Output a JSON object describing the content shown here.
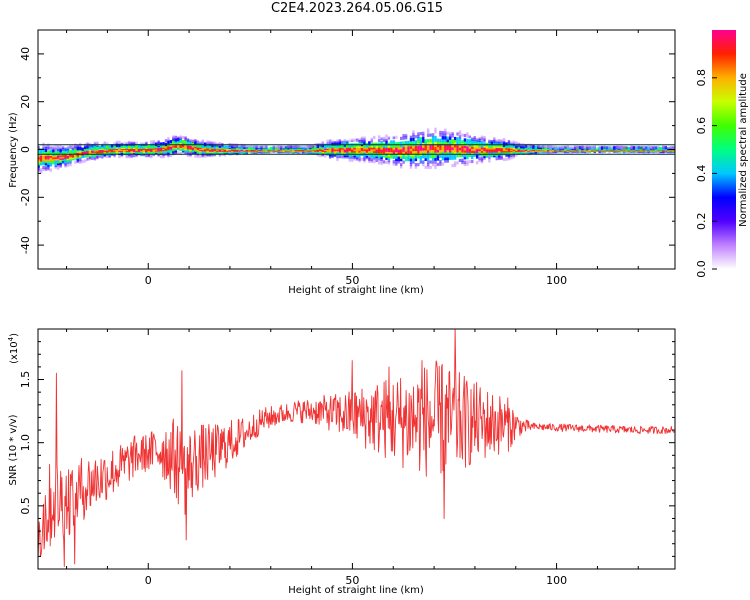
{
  "title": "C2E4.2023.264.05.06.G15",
  "chart_data": [
    {
      "type": "heatmap",
      "xlabel": "Height of straight line (km)",
      "ylabel": "Frequency (Hz)",
      "xlim": [
        -27,
        129
      ],
      "ylim": [
        -50,
        50
      ],
      "xticks": [
        0,
        50,
        100
      ],
      "yticks": [
        40,
        20,
        0,
        -20,
        -40
      ],
      "ytick_labels": [
        "40",
        "20",
        "0",
        "-20",
        "-40"
      ],
      "colorbar": {
        "label": "Normalized spectral amplitude",
        "range": [
          0,
          1
        ],
        "ticks": [
          0.0,
          0.2,
          0.4,
          0.6,
          0.8
        ],
        "tick_labels": [
          "0.0",
          "0.2",
          "0.4",
          "0.6",
          "0.8"
        ],
        "colors": [
          "#ffffff",
          "#c080ff",
          "#5000ff",
          "#0000ff",
          "#00c8ff",
          "#00ff80",
          "#40ff00",
          "#c8ff00",
          "#ffb000",
          "#ff2000",
          "#ff0090"
        ]
      },
      "reference_band_hz": [
        -2,
        2
      ],
      "centerline_points": [
        [
          -27,
          -3.5
        ],
        [
          -24,
          -3.5
        ],
        [
          -21,
          -3
        ],
        [
          -18,
          -2
        ],
        [
          -15,
          -1
        ],
        [
          -12,
          -0.5
        ],
        [
          -8,
          0
        ],
        [
          -4,
          0
        ],
        [
          0,
          0
        ],
        [
          4,
          0.5
        ],
        [
          7,
          2
        ],
        [
          9,
          1.5
        ],
        [
          12,
          0.5
        ],
        [
          16,
          0
        ],
        [
          20,
          0
        ],
        [
          30,
          0
        ],
        [
          40,
          0
        ],
        [
          50,
          0
        ],
        [
          55,
          0
        ],
        [
          60,
          -0.5
        ],
        [
          65,
          0
        ],
        [
          70,
          0.5
        ],
        [
          75,
          0.5
        ],
        [
          80,
          0
        ],
        [
          85,
          0
        ],
        [
          88,
          0
        ],
        [
          90,
          0
        ],
        [
          100,
          0
        ],
        [
          110,
          0
        ],
        [
          120,
          0
        ],
        [
          129,
          0
        ]
      ],
      "spread_points": [
        [
          -27,
          6
        ],
        [
          -20,
          4
        ],
        [
          -10,
          3
        ],
        [
          0,
          3
        ],
        [
          8,
          4
        ],
        [
          20,
          2
        ],
        [
          30,
          1
        ],
        [
          40,
          1.5
        ],
        [
          45,
          4
        ],
        [
          55,
          5
        ],
        [
          62,
          7
        ],
        [
          70,
          8
        ],
        [
          76,
          7
        ],
        [
          82,
          5
        ],
        [
          88,
          4
        ],
        [
          91,
          2
        ],
        [
          100,
          1
        ],
        [
          129,
          1
        ]
      ]
    },
    {
      "type": "line",
      "xlabel": "Height of straight line (km)",
      "ylabel": "SNR (10 * v/v)",
      "y_multiplier": "(x10",
      "y_multiplier_exp": "4",
      "y_multiplier_close": ")",
      "xlim": [
        -27,
        129
      ],
      "ylim": [
        0,
        1.9
      ],
      "xticks": [
        0,
        50,
        100
      ],
      "yticks": [
        0.5,
        1.0,
        1.5
      ],
      "ytick_labels": [
        "0.5",
        "1.0",
        "1.5"
      ],
      "color": "#f03232",
      "mean_points": [
        [
          -27,
          0.3
        ],
        [
          -25,
          0.45
        ],
        [
          -23,
          0.55
        ],
        [
          -20,
          0.55
        ],
        [
          -17,
          0.62
        ],
        [
          -14,
          0.68
        ],
        [
          -10,
          0.75
        ],
        [
          -6,
          0.82
        ],
        [
          -3,
          0.9
        ],
        [
          0,
          0.92
        ],
        [
          3,
          0.95
        ],
        [
          6,
          0.9
        ],
        [
          9,
          0.75
        ],
        [
          12,
          0.88
        ],
        [
          16,
          0.92
        ],
        [
          20,
          1.0
        ],
        [
          24,
          1.08
        ],
        [
          28,
          1.18
        ],
        [
          32,
          1.22
        ],
        [
          36,
          1.25
        ],
        [
          42,
          1.25
        ],
        [
          48,
          1.22
        ],
        [
          55,
          1.2
        ],
        [
          62,
          1.18
        ],
        [
          68,
          1.18
        ],
        [
          73,
          1.17
        ],
        [
          78,
          1.16
        ],
        [
          84,
          1.15
        ],
        [
          89,
          1.14
        ],
        [
          92,
          1.13
        ],
        [
          100,
          1.12
        ],
        [
          110,
          1.11
        ],
        [
          120,
          1.1
        ],
        [
          129,
          1.1
        ]
      ],
      "amplitude_points": [
        [
          -27,
          0.35
        ],
        [
          -22,
          0.35
        ],
        [
          -18,
          0.28
        ],
        [
          -12,
          0.22
        ],
        [
          -6,
          0.18
        ],
        [
          0,
          0.15
        ],
        [
          8,
          0.35
        ],
        [
          14,
          0.25
        ],
        [
          20,
          0.18
        ],
        [
          27,
          0.1
        ],
        [
          33,
          0.08
        ],
        [
          40,
          0.1
        ],
        [
          48,
          0.18
        ],
        [
          56,
          0.3
        ],
        [
          62,
          0.38
        ],
        [
          70,
          0.48
        ],
        [
          75,
          0.42
        ],
        [
          82,
          0.3
        ],
        [
          88,
          0.22
        ],
        [
          91,
          0.08
        ],
        [
          94,
          0.03
        ],
        [
          129,
          0.03
        ]
      ],
      "spikes": [
        [
          -22.5,
          1.55
        ],
        [
          -20.5,
          0.02
        ],
        [
          -18,
          0.04
        ],
        [
          8.2,
          1.57
        ],
        [
          9.3,
          0.23
        ],
        [
          75.2,
          1.92
        ],
        [
          72.5,
          0.4
        ],
        [
          67,
          1.65
        ],
        [
          50,
          1.65
        ],
        [
          59,
          1.6
        ],
        [
          72,
          1.62
        ]
      ]
    }
  ]
}
